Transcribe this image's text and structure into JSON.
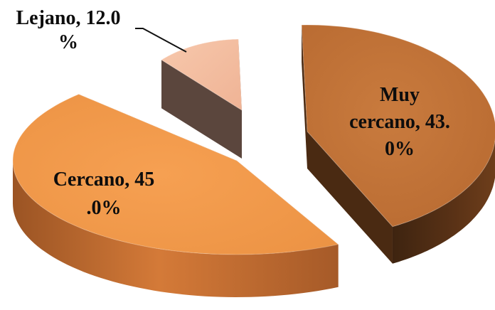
{
  "chart_data": {
    "type": "pie",
    "style": "3d-exploded",
    "title": "",
    "slices": [
      {
        "label": "Muy cercano",
        "value": 43.0,
        "display_lines": [
          "Muy",
          "cercano, 43.",
          "0%"
        ],
        "top_color": "#c2743a",
        "side_color": "#5a3216"
      },
      {
        "label": "Cercano",
        "value": 45.0,
        "display_lines": [
          "Cercano, 45",
          ".0%"
        ],
        "top_color": "#ef9a4b",
        "side_color": "#b9652c"
      },
      {
        "label": "Lejano",
        "value": 12.0,
        "display_lines": [
          "Lejano, 12.0",
          "%"
        ],
        "top_color": "#f4bea0",
        "side_color": "#5e4a42"
      }
    ]
  }
}
